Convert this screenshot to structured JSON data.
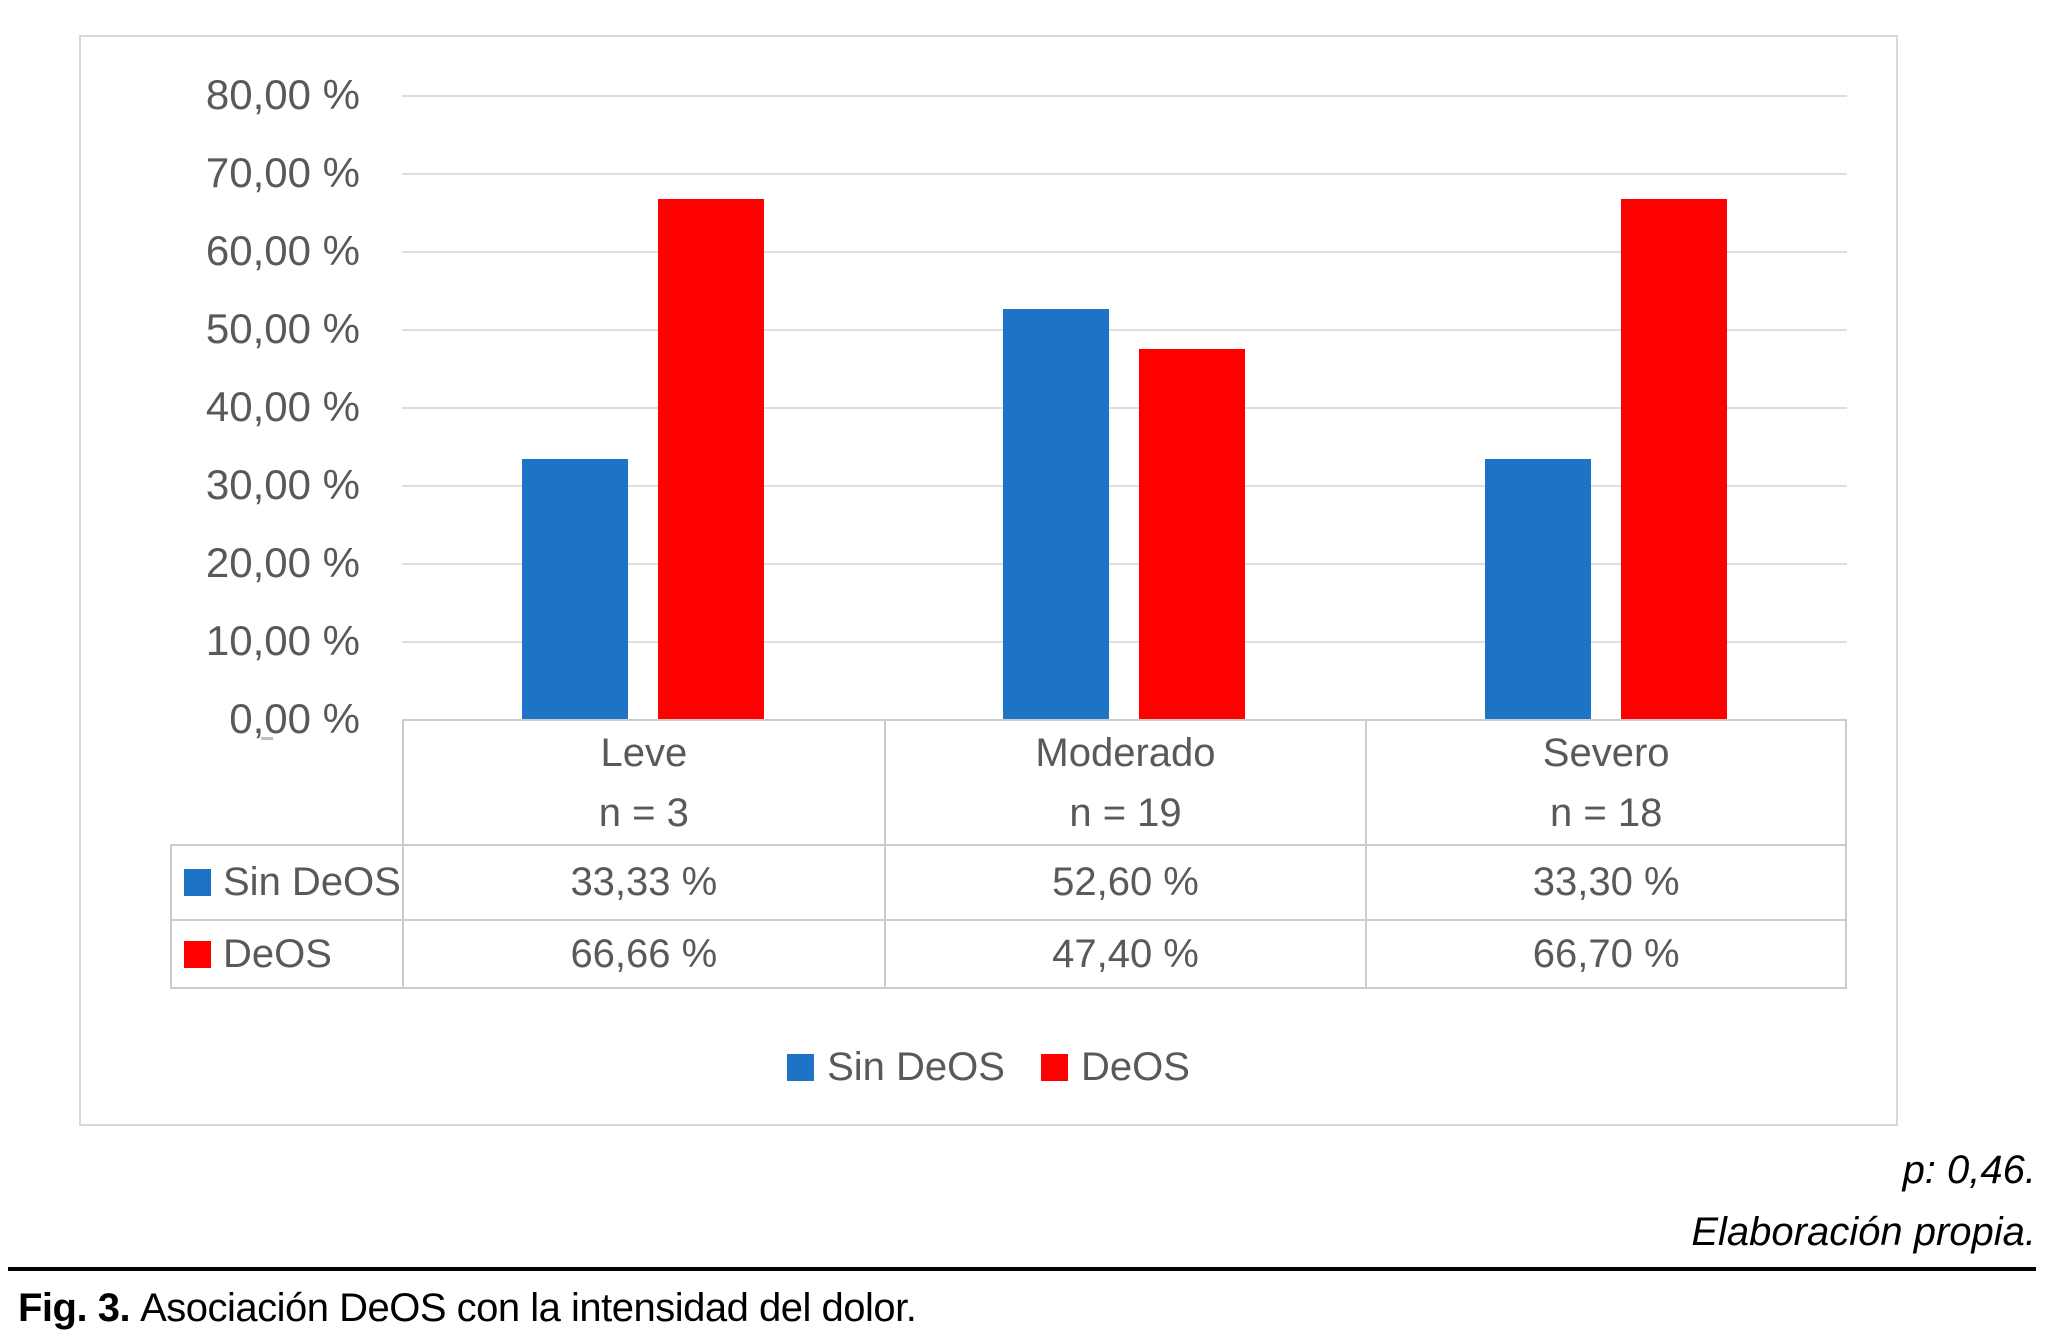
{
  "chart_data": {
    "type": "bar",
    "title": "",
    "categories": [
      {
        "label": "Leve",
        "n_label": "n = 3"
      },
      {
        "label": "Moderado",
        "n_label": "n = 19"
      },
      {
        "label": "Severo",
        "n_label": "n = 18"
      }
    ],
    "series": [
      {
        "name": "Sin DeOS",
        "color": "#1D73C6",
        "values": [
          33.33,
          52.6,
          33.3
        ],
        "formatted": [
          "33,33 %",
          "52,60 %",
          "33,30 %"
        ]
      },
      {
        "name": "DeOS",
        "color": "#FE0000",
        "values": [
          66.66,
          47.4,
          66.7
        ],
        "formatted": [
          "66,66 %",
          "47,40 %",
          "66,70 %"
        ]
      }
    ],
    "y_axis": {
      "min": 0,
      "max": 80,
      "step": 10,
      "ticks": [
        "80,00 %",
        "70,00 %",
        "60,00 %",
        "50,00 %",
        "40,00 %",
        "30,00 %",
        "20,00 %",
        "10,00 %",
        "0,00 %"
      ]
    },
    "grid": true,
    "legend_position": "bottom",
    "data_table_shown": true
  },
  "legend": {
    "items": [
      {
        "label": "Sin DeOS",
        "color": "#1D73C6"
      },
      {
        "label": "DeOS",
        "color": "#FE0000"
      }
    ]
  },
  "footnotes": {
    "p_value": "p: 0,46.",
    "source": "Elaboración propia."
  },
  "caption": {
    "fig_label": "Fig. 3.",
    "text": "Asociación DeOS con la intensidad del dolor."
  },
  "colors": {
    "series_blue": "#1D73C6",
    "series_red": "#FE0000",
    "gridline": "#DEDEDE",
    "axis_text": "#595959",
    "frame_border": "#D9D9D9",
    "table_border": "#CCCCCC",
    "rule": "#000000"
  }
}
